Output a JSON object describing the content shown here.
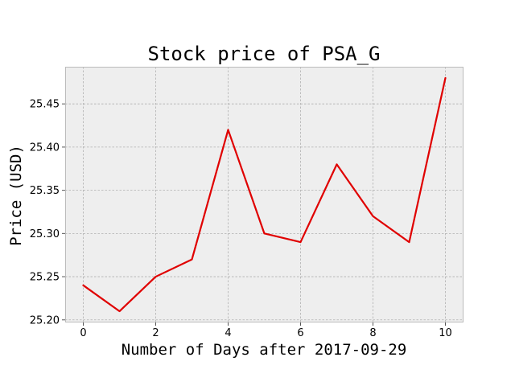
{
  "chart_data": {
    "type": "line",
    "title": "Stock price of PSA_G",
    "xlabel": "Number of Days after 2017-09-29",
    "ylabel": "Price (USD)",
    "x": [
      0,
      1,
      2,
      3,
      4,
      5,
      6,
      7,
      8,
      9,
      10
    ],
    "series": [
      {
        "values": [
          25.24,
          25.21,
          25.25,
          25.27,
          25.42,
          25.3,
          25.29,
          25.38,
          25.32,
          25.29,
          25.48
        ],
        "color": "#e00000"
      }
    ],
    "xlim": [
      -0.5,
      10.5
    ],
    "ylim": [
      25.197,
      25.493
    ],
    "xticks": [
      "0",
      "2",
      "4",
      "6",
      "8",
      "10"
    ],
    "yticks": [
      "25.20",
      "25.25",
      "25.30",
      "25.35",
      "25.40",
      "25.45"
    ],
    "grid": true,
    "background_color": "#eeeeee",
    "grid_color": "#b0b0b0"
  }
}
